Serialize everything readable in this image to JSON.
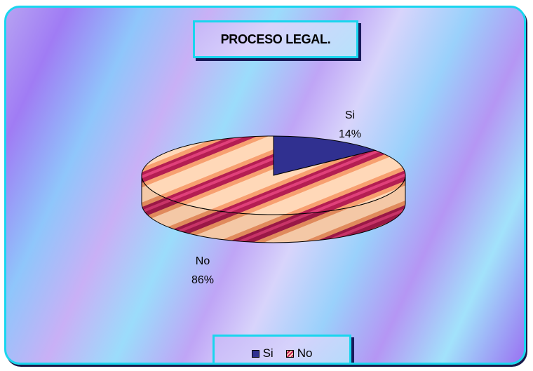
{
  "chart_data": {
    "type": "pie",
    "title": "PROCESO LEGAL.",
    "slices": [
      {
        "name": "Si",
        "value": 14,
        "label": "14%",
        "color": "#303090"
      },
      {
        "name": "No",
        "value": 86,
        "label": "86%",
        "color": "#c0205a"
      }
    ],
    "legend": {
      "placement": "bottom",
      "entries": [
        "Si",
        "No"
      ]
    },
    "three_d": true
  }
}
